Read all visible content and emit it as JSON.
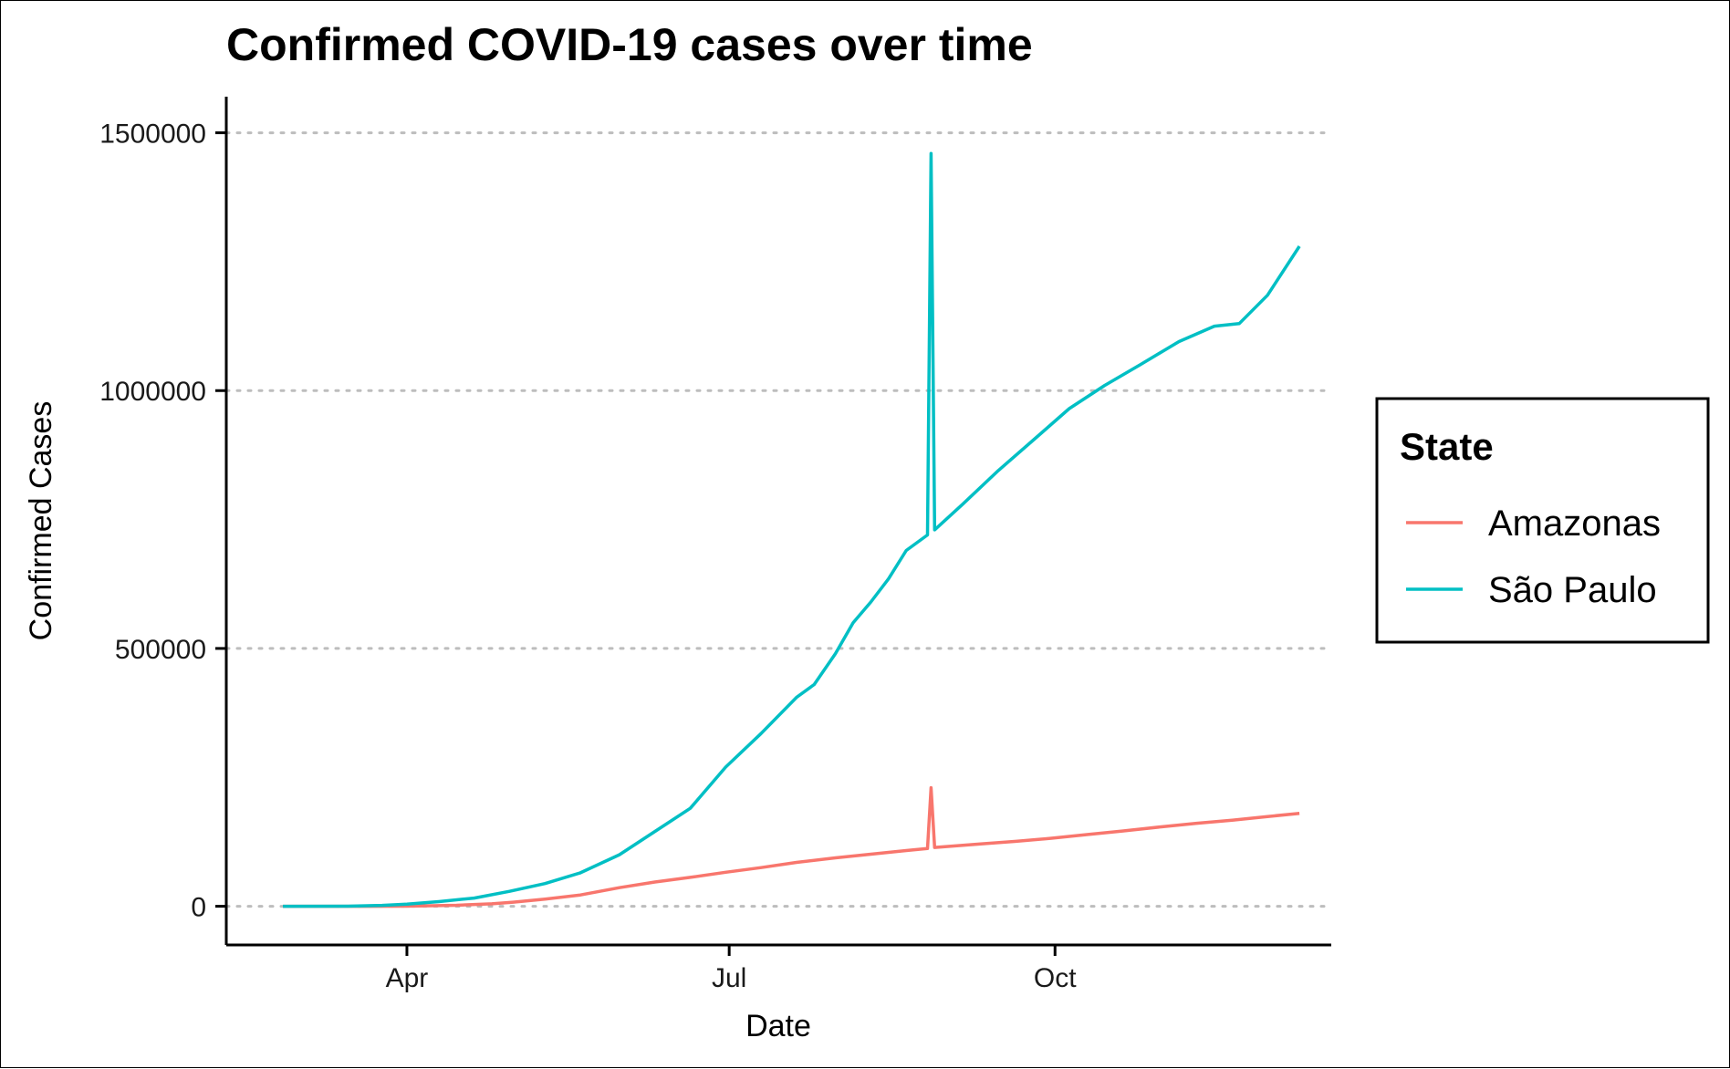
{
  "chart_data": {
    "type": "line",
    "title": "Confirmed COVID-19 cases over time",
    "xlabel": "Date",
    "ylabel": "Confirmed Cases",
    "x_ticks": [
      {
        "label": "Apr",
        "date": "2020-04-01"
      },
      {
        "label": "Jul",
        "date": "2020-07-01"
      },
      {
        "label": "Oct",
        "date": "2020-10-01"
      }
    ],
    "y_ticks": [
      0,
      500000,
      1000000,
      1500000
    ],
    "y_tick_labels": [
      "0",
      "500000",
      "1000000",
      "1500000"
    ],
    "xlim": [
      "2020-02-10",
      "2020-12-18"
    ],
    "ylim": [
      -75000,
      1570000
    ],
    "grid": "horizontal dotted",
    "legend": {
      "title": "State",
      "position": "right"
    },
    "series": [
      {
        "name": "Amazonas",
        "color": "#F8766D",
        "points": [
          [
            "2020-02-26",
            0
          ],
          [
            "2020-03-20",
            0
          ],
          [
            "2020-04-01",
            200
          ],
          [
            "2020-04-15",
            1900
          ],
          [
            "2020-04-25",
            4800
          ],
          [
            "2020-05-01",
            7900
          ],
          [
            "2020-05-10",
            14000
          ],
          [
            "2020-05-20",
            22000
          ],
          [
            "2020-05-31",
            36000
          ],
          [
            "2020-06-10",
            47000
          ],
          [
            "2020-06-20",
            56000
          ],
          [
            "2020-06-30",
            66000
          ],
          [
            "2020-07-10",
            75000
          ],
          [
            "2020-07-20",
            85000
          ],
          [
            "2020-07-31",
            94000
          ],
          [
            "2020-08-10",
            101000
          ],
          [
            "2020-08-20",
            108000
          ],
          [
            "2020-08-26",
            112000
          ],
          [
            "2020-08-27",
            230000
          ],
          [
            "2020-08-28",
            114000
          ],
          [
            "2020-09-10",
            121000
          ],
          [
            "2020-09-20",
            126000
          ],
          [
            "2020-09-30",
            132000
          ],
          [
            "2020-10-10",
            139000
          ],
          [
            "2020-10-20",
            146000
          ],
          [
            "2020-10-31",
            154000
          ],
          [
            "2020-11-10",
            161000
          ],
          [
            "2020-11-20",
            167000
          ],
          [
            "2020-11-30",
            174000
          ],
          [
            "2020-12-09",
            180000
          ]
        ]
      },
      {
        "name": "São Paulo",
        "color": "#00BFC4",
        "points": [
          [
            "2020-02-26",
            0
          ],
          [
            "2020-03-15",
            200
          ],
          [
            "2020-03-25",
            1800
          ],
          [
            "2020-04-01",
            4000
          ],
          [
            "2020-04-10",
            9000
          ],
          [
            "2020-04-20",
            16000
          ],
          [
            "2020-04-30",
            29000
          ],
          [
            "2020-05-10",
            44000
          ],
          [
            "2020-05-20",
            65000
          ],
          [
            "2020-05-31",
            100000
          ],
          [
            "2020-06-10",
            145000
          ],
          [
            "2020-06-20",
            190000
          ],
          [
            "2020-06-30",
            270000
          ],
          [
            "2020-07-10",
            335000
          ],
          [
            "2020-07-20",
            405000
          ],
          [
            "2020-07-25",
            430000
          ],
          [
            "2020-07-31",
            490000
          ],
          [
            "2020-08-05",
            550000
          ],
          [
            "2020-08-10",
            590000
          ],
          [
            "2020-08-15",
            635000
          ],
          [
            "2020-08-20",
            690000
          ],
          [
            "2020-08-26",
            720000
          ],
          [
            "2020-08-27",
            1460000
          ],
          [
            "2020-08-28",
            730000
          ],
          [
            "2020-09-05",
            780000
          ],
          [
            "2020-09-15",
            845000
          ],
          [
            "2020-09-25",
            905000
          ],
          [
            "2020-10-05",
            965000
          ],
          [
            "2020-10-15",
            1010000
          ],
          [
            "2020-10-25",
            1050000
          ],
          [
            "2020-11-05",
            1095000
          ],
          [
            "2020-11-15",
            1125000
          ],
          [
            "2020-11-22",
            1130000
          ],
          [
            "2020-11-30",
            1185000
          ],
          [
            "2020-12-09",
            1280000
          ]
        ]
      }
    ]
  }
}
